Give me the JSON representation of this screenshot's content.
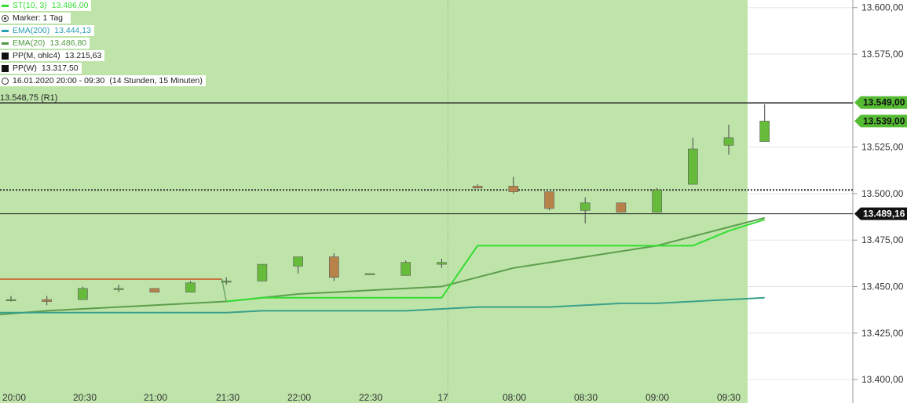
{
  "legend": [
    {
      "name": "ST(10, 3)",
      "value": "13.486,00",
      "color": "#33dd33",
      "swatch": "line"
    },
    {
      "name": "Marker: 1 Tag",
      "value": "",
      "color": "#333333",
      "swatch": "target"
    },
    {
      "name": "EMA(200)",
      "value": "13.444,13",
      "color": "#2a9fb3",
      "swatch": "line"
    },
    {
      "name": "EMA(20)",
      "value": "13.486,80",
      "color": "#4f9a3f",
      "swatch": "line"
    },
    {
      "name": "PP(M, ohlc4)",
      "value": "13.215,63",
      "color": "#111111",
      "swatch": "box"
    },
    {
      "name": "PP(W)",
      "value": "13.317,50",
      "color": "#111111",
      "swatch": "box"
    },
    {
      "name": "16.01.2020 20:00 - 09:30",
      "value": "(14 Stunden, 15 Minuten)",
      "color": "#333333",
      "swatch": "clock"
    }
  ],
  "colors": {
    "background_zone": "#bfe4aa",
    "grid": "#e5e5e5",
    "candle_up": "#66bb3a",
    "candle_down": "#b8834a",
    "supertrend": "#33dd33",
    "ema20": "#5d9e4c",
    "ema200": "#3aa08a",
    "st_prior": "#c8783f",
    "last_price_tag": "#111111",
    "price_tag_green": "#55bb33"
  },
  "chart_data": {
    "type": "candlestick",
    "title": "",
    "x_ticks": [
      "20:00",
      "20:30",
      "21:00",
      "21:30",
      "22:00",
      "22:30",
      "17",
      "08:00",
      "08:30",
      "09:00",
      "09:30"
    ],
    "y_ticks": [
      "13.400,00",
      "13.425,00",
      "13.450,00",
      "13.475,00",
      "13.500,00",
      "13.525,00",
      "13.549,00",
      "13.575,00",
      "13.600,00"
    ],
    "ylim": [
      13395,
      13602
    ],
    "interval_minutes": 15,
    "candles": [
      {
        "time": "20:00",
        "o": 13443,
        "h": 13445,
        "l": 13442,
        "c": 13443
      },
      {
        "time": "20:15",
        "o": 13443,
        "h": 13445,
        "l": 13440,
        "c": 13442
      },
      {
        "time": "20:15",
        "o": 13443,
        "h": 13450,
        "l": 13443,
        "c": 13449
      },
      {
        "time": "20:30",
        "o": 13449,
        "h": 13451,
        "l": 13447,
        "c": 13449
      },
      {
        "time": "20:45",
        "o": 13449,
        "h": 13449,
        "l": 13447,
        "c": 13447
      },
      {
        "time": "21:00",
        "o": 13447,
        "h": 13453,
        "l": 13447,
        "c": 13452
      },
      {
        "time": "21:15",
        "o": 13453,
        "h": 13455,
        "l": 13451,
        "c": 13453
      },
      {
        "time": "21:30",
        "o": 13453,
        "h": 13462,
        "l": 13453,
        "c": 13462
      },
      {
        "time": "21:45",
        "o": 13461,
        "h": 13466,
        "l": 13457,
        "c": 13466
      },
      {
        "time": "22:00",
        "o": 13466,
        "h": 13468,
        "l": 13453,
        "c": 13455
      },
      {
        "time": "22:15",
        "o": 13457,
        "h": 13457,
        "l": 13457,
        "c": 13457
      },
      {
        "time": "22:30",
        "o": 13456,
        "h": 13464,
        "l": 13456,
        "c": 13463
      },
      {
        "time": "22:45",
        "o": 13462,
        "h": 13465,
        "l": 13460,
        "c": 13463
      },
      {
        "time": "07:45",
        "o": 13504,
        "h": 13505,
        "l": 13503,
        "c": 13503
      },
      {
        "time": "08:00",
        "o": 13504,
        "h": 13509,
        "l": 13500,
        "c": 13501
      },
      {
        "time": "08:15",
        "o": 13501,
        "h": 13501,
        "l": 13491,
        "c": 13492
      },
      {
        "time": "08:30",
        "o": 13491,
        "h": 13498,
        "l": 13484,
        "c": 13495
      },
      {
        "time": "08:45",
        "o": 13495,
        "h": 13495,
        "l": 13490,
        "c": 13490
      },
      {
        "time": "09:00",
        "o": 13490,
        "h": 13503,
        "l": 13490,
        "c": 13502
      },
      {
        "time": "09:15",
        "o": 13505,
        "h": 13530,
        "l": 13505,
        "c": 13524
      },
      {
        "time": "09:30",
        "o": 13526,
        "h": 13537,
        "l": 13521,
        "c": 13530
      },
      {
        "time": "09:45",
        "o": 13528,
        "h": 13548,
        "l": 13528,
        "c": 13539
      }
    ],
    "series": [
      {
        "name": "EMA(20)",
        "values": [
          13435,
          13437,
          13438,
          13439,
          13440,
          13441,
          13442,
          13444,
          13446,
          13447,
          13448,
          13449,
          13450,
          13455,
          13460,
          13463,
          13466,
          13469,
          13472,
          13477,
          13482,
          13487
        ]
      },
      {
        "name": "EMA(200)",
        "values": [
          13436,
          13436,
          13436,
          13436,
          13436,
          13436,
          13436,
          13437,
          13437,
          13437,
          13437,
          13437,
          13438,
          13439,
          13439,
          13439,
          13440,
          13441,
          13441,
          13442,
          13443,
          13444
        ]
      },
      {
        "name": "ST(10, 3)",
        "values": [
          null,
          null,
          null,
          null,
          null,
          null,
          13442,
          13444,
          13444,
          13444,
          13444,
          13444,
          13444,
          13472,
          13472,
          13472,
          13472,
          13472,
          13472,
          13472,
          13480,
          13486
        ]
      }
    ],
    "st_prior_level": 13454,
    "levels": [
      {
        "name": "R1",
        "value": 13548.75,
        "label": "13.548,75 (R1)",
        "style": "solid"
      },
      {
        "name": "dotted",
        "value": 13502,
        "style": "dotted"
      },
      {
        "name": "cursor",
        "value": 13489.16,
        "style": "solid-thin"
      }
    ],
    "price_tags": [
      {
        "value": 13549.0,
        "label": "13.549,00"
      },
      {
        "value": 13539.0,
        "label": "13.539,00"
      },
      {
        "value": 13489.16,
        "label": "13.489,16"
      }
    ],
    "legend_position": "top-left",
    "grid": true
  }
}
